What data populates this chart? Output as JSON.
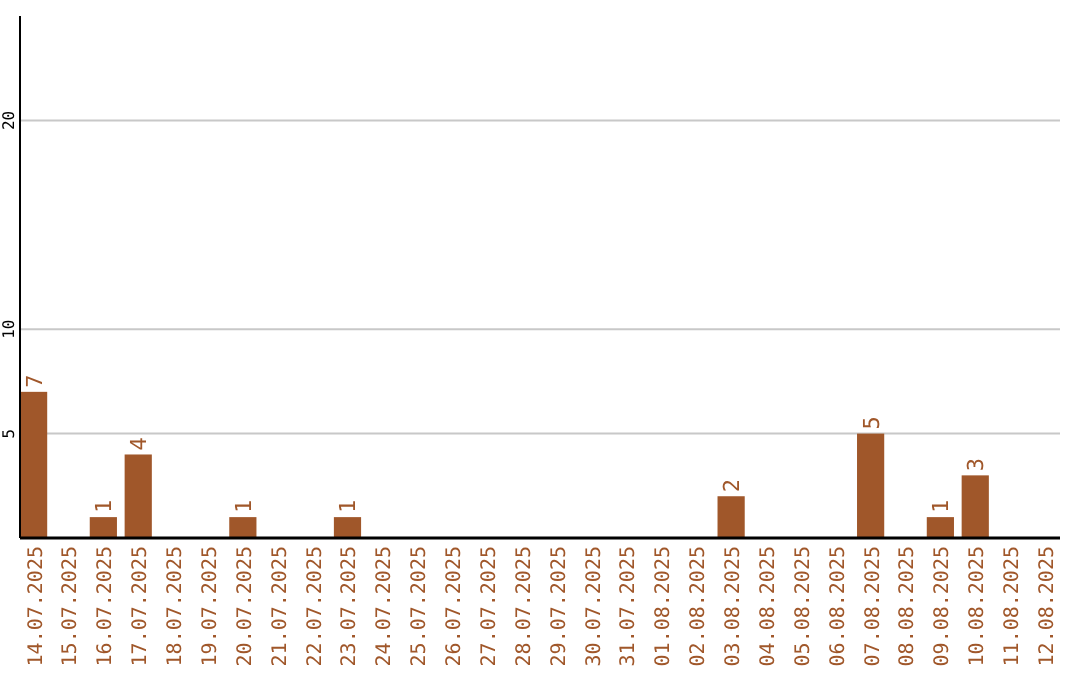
{
  "chart_data": {
    "type": "bar",
    "categories": [
      "14.07.2025",
      "15.07.2025",
      "16.07.2025",
      "17.07.2025",
      "18.07.2025",
      "19.07.2025",
      "20.07.2025",
      "21.07.2025",
      "22.07.2025",
      "23.07.2025",
      "24.07.2025",
      "25.07.2025",
      "26.07.2025",
      "27.07.2025",
      "28.07.2025",
      "29.07.2025",
      "30.07.2025",
      "31.07.2025",
      "01.08.2025",
      "02.08.2025",
      "03.08.2025",
      "04.08.2025",
      "05.08.2025",
      "06.08.2025",
      "07.08.2025",
      "08.08.2025",
      "09.08.2025",
      "10.08.2025",
      "11.08.2025",
      "12.08.2025"
    ],
    "values": [
      7,
      0,
      1,
      4,
      0,
      0,
      1,
      0,
      0,
      1,
      0,
      0,
      0,
      0,
      0,
      0,
      0,
      0,
      0,
      0,
      2,
      0,
      0,
      0,
      5,
      0,
      1,
      3,
      0,
      0
    ],
    "value_labels": [
      "7",
      null,
      "1",
      "4",
      null,
      null,
      "1",
      null,
      null,
      "1",
      null,
      null,
      null,
      null,
      null,
      null,
      null,
      null,
      null,
      null,
      "2",
      null,
      null,
      null,
      "5",
      null,
      "1",
      "3",
      null,
      null
    ],
    "color": "#a0572a",
    "ylim": [
      0,
      25
    ],
    "yticks": [
      5,
      10,
      20
    ],
    "grid": "y"
  }
}
